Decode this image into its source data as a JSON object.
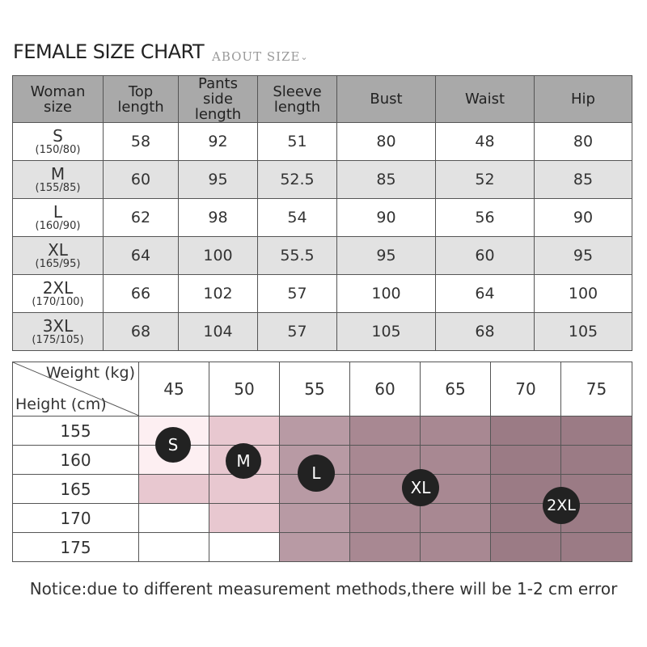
{
  "header": {
    "title": "FEMALE SIZE CHART",
    "subtitle": "ABOUT SIZE",
    "subtitle_icon": "chevron-down-icon"
  },
  "size_table": {
    "headers": [
      [
        "Woman",
        "size"
      ],
      [
        "Top",
        "length"
      ],
      [
        "Pants",
        "side length"
      ],
      [
        "Sleeve",
        "length"
      ],
      [
        "Bust"
      ],
      [
        "Waist"
      ],
      [
        "Hip"
      ]
    ],
    "rows": [
      {
        "size": "S",
        "sub": "(150/80)",
        "values": [
          "58",
          "92",
          "51",
          "80",
          "48",
          "80"
        ]
      },
      {
        "size": "M",
        "sub": "(155/85)",
        "values": [
          "60",
          "95",
          "52.5",
          "85",
          "52",
          "85"
        ]
      },
      {
        "size": "L",
        "sub": "(160/90)",
        "values": [
          "62",
          "98",
          "54",
          "90",
          "56",
          "90"
        ]
      },
      {
        "size": "XL",
        "sub": "(165/95)",
        "values": [
          "64",
          "100",
          "55.5",
          "95",
          "60",
          "95"
        ]
      },
      {
        "size": "2XL",
        "sub": "(170/100)",
        "values": [
          "66",
          "102",
          "57",
          "100",
          "64",
          "100"
        ]
      },
      {
        "size": "3XL",
        "sub": "(175/105)",
        "values": [
          "68",
          "104",
          "57",
          "105",
          "68",
          "105"
        ]
      }
    ]
  },
  "fit_table": {
    "weight_label": "Weight (kg)",
    "height_label": "Height (cm)",
    "weights": [
      "45",
      "50",
      "55",
      "60",
      "65",
      "70",
      "75"
    ],
    "heights": [
      "155",
      "160",
      "165",
      "170",
      "175"
    ],
    "shading": [
      [
        1,
        2,
        3,
        4,
        4,
        5,
        5
      ],
      [
        1,
        2,
        3,
        4,
        4,
        5,
        5
      ],
      [
        2,
        2,
        3,
        4,
        4,
        5,
        5
      ],
      [
        0,
        2,
        3,
        4,
        4,
        5,
        5
      ],
      [
        0,
        0,
        3,
        4,
        4,
        5,
        5
      ]
    ],
    "badges": [
      "S",
      "M",
      "L",
      "XL",
      "2XL"
    ],
    "colors": {
      "c1": "#fdeff2",
      "c2": "#e8c8d0",
      "c3": "#b89aa4",
      "c4": "#a88892",
      "c5": "#9b7b85"
    }
  },
  "notice": "Notice:due to different measurement methods,there will be 1-2 cm error"
}
